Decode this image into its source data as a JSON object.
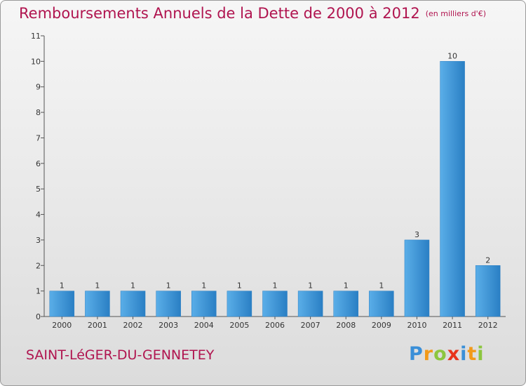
{
  "chart_data": {
    "type": "bar",
    "title": "Remboursements Annuels de la Dette de 2000 à 2012",
    "subtitle": "(en milliers d'€)",
    "categories": [
      "2000",
      "2001",
      "2002",
      "2003",
      "2004",
      "2005",
      "2006",
      "2007",
      "2008",
      "2009",
      "2010",
      "2011",
      "2012"
    ],
    "values": [
      1,
      1,
      1,
      1,
      1,
      1,
      1,
      1,
      1,
      1,
      3,
      10,
      2
    ],
    "data_labels": [
      "1",
      "1",
      "1",
      "1",
      "1",
      "1",
      "1",
      "1",
      "1",
      "1",
      "3",
      "10",
      "2"
    ],
    "ylim": [
      0,
      11
    ],
    "y_ticks": [
      "0",
      "1",
      "2",
      "3",
      "4",
      "5",
      "6",
      "7",
      "8",
      "9",
      "10",
      "11"
    ],
    "grid": false,
    "colors": {
      "bar_light": "#5aaee8",
      "bar_dark": "#2a7fc4",
      "title": "#b0144f"
    }
  },
  "commune": "SAINT-LéGER-DU-GENNETEY",
  "logo": {
    "letters": [
      "P",
      "r",
      "o",
      "x",
      "i",
      "t",
      "i"
    ],
    "colors": [
      "#3a8fd8",
      "#f29a1a",
      "#8cc63f",
      "#e8341c",
      "#3a8fd8",
      "#f29a1a",
      "#8cc63f"
    ]
  }
}
